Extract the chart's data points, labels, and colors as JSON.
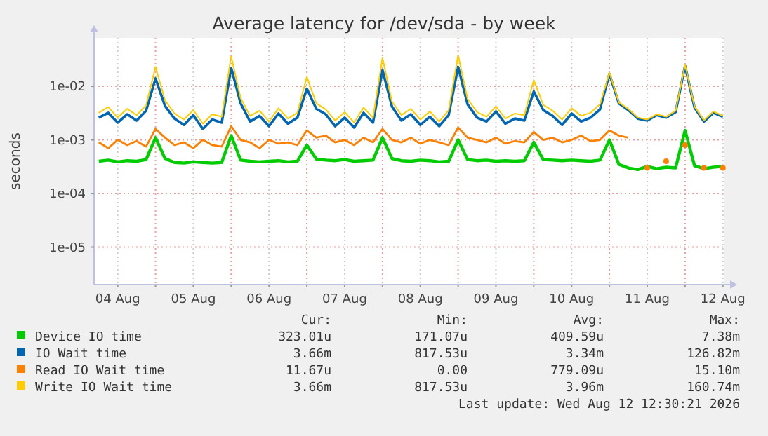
{
  "chart_data": {
    "type": "line",
    "title": "Average latency for /dev/sda - by week",
    "ylabel": "seconds",
    "log": true,
    "grid": true,
    "legend": "bottom",
    "marker": "none",
    "line_style": "solid",
    "xlim": [
      "2026-08-04T04:30",
      "2026-08-12T12:30"
    ],
    "xticks": [
      {
        "value": "2026-08-04T12:00",
        "label": "04 Aug"
      },
      {
        "value": "2026-08-05T00:00",
        "label": null
      },
      {
        "value": "2026-08-05T12:00",
        "label": "05 Aug"
      },
      {
        "value": "2026-08-06T00:00",
        "label": null
      },
      {
        "value": "2026-08-06T12:00",
        "label": "06 Aug"
      },
      {
        "value": "2026-08-07T00:00",
        "label": null
      },
      {
        "value": "2026-08-07T12:00",
        "label": "07 Aug"
      },
      {
        "value": "2026-08-08T00:00",
        "label": null
      },
      {
        "value": "2026-08-08T12:00",
        "label": "08 Aug"
      },
      {
        "value": "2026-08-09T00:00",
        "label": null
      },
      {
        "value": "2026-08-09T12:00",
        "label": "09 Aug"
      },
      {
        "value": "2026-08-10T00:00",
        "label": null
      },
      {
        "value": "2026-08-10T12:00",
        "label": "10 Aug"
      },
      {
        "value": "2026-08-11T00:00",
        "label": null
      },
      {
        "value": "2026-08-11T12:00",
        "label": "11 Aug"
      },
      {
        "value": "2026-08-12T00:00",
        "label": null
      },
      {
        "value": "2026-08-12T12:00",
        "label": "12 Aug"
      }
    ],
    "ylim": [
      2e-06,
      0.08
    ],
    "yticks": [
      {
        "value": 1e-05,
        "label": "1e-05"
      },
      {
        "value": 0.0001,
        "label": "1e-04"
      },
      {
        "value": 0.001,
        "label": "1e-03"
      },
      {
        "value": 0.01,
        "label": "1e-02"
      }
    ],
    "x": [
      "2026-08-04T06:00",
      "2026-08-04T09:00",
      "2026-08-04T12:00",
      "2026-08-04T15:00",
      "2026-08-04T18:00",
      "2026-08-04T21:00",
      "2026-08-05T00:00",
      "2026-08-05T03:00",
      "2026-08-05T06:00",
      "2026-08-05T09:00",
      "2026-08-05T12:00",
      "2026-08-05T15:00",
      "2026-08-05T18:00",
      "2026-08-05T21:00",
      "2026-08-06T00:00",
      "2026-08-06T03:00",
      "2026-08-06T06:00",
      "2026-08-06T09:00",
      "2026-08-06T12:00",
      "2026-08-06T15:00",
      "2026-08-06T18:00",
      "2026-08-06T21:00",
      "2026-08-07T00:00",
      "2026-08-07T03:00",
      "2026-08-07T06:00",
      "2026-08-07T09:00",
      "2026-08-07T12:00",
      "2026-08-07T15:00",
      "2026-08-07T18:00",
      "2026-08-07T21:00",
      "2026-08-08T00:00",
      "2026-08-08T03:00",
      "2026-08-08T06:00",
      "2026-08-08T09:00",
      "2026-08-08T12:00",
      "2026-08-08T15:00",
      "2026-08-08T18:00",
      "2026-08-08T21:00",
      "2026-08-09T00:00",
      "2026-08-09T03:00",
      "2026-08-09T06:00",
      "2026-08-09T09:00",
      "2026-08-09T12:00",
      "2026-08-09T15:00",
      "2026-08-09T18:00",
      "2026-08-09T21:00",
      "2026-08-10T00:00",
      "2026-08-10T03:00",
      "2026-08-10T06:00",
      "2026-08-10T09:00",
      "2026-08-10T12:00",
      "2026-08-10T15:00",
      "2026-08-10T18:00",
      "2026-08-10T21:00",
      "2026-08-11T00:00",
      "2026-08-11T03:00",
      "2026-08-11T06:00",
      "2026-08-11T09:00",
      "2026-08-11T12:00",
      "2026-08-11T15:00",
      "2026-08-11T18:00",
      "2026-08-11T21:00",
      "2026-08-12T00:00",
      "2026-08-12T03:00",
      "2026-08-12T06:00",
      "2026-08-12T09:00",
      "2026-08-12T12:00"
    ],
    "series": [
      {
        "name": "Device IO time",
        "color": "#00cc00",
        "values": [
          0.0004,
          0.00042,
          0.00039,
          0.00041,
          0.0004,
          0.00043,
          0.0011,
          0.00045,
          0.00038,
          0.00037,
          0.00039,
          0.00038,
          0.00037,
          0.00038,
          0.0012,
          0.00042,
          0.0004,
          0.00039,
          0.0004,
          0.00041,
          0.00039,
          0.0004,
          0.0008,
          0.00044,
          0.00042,
          0.00041,
          0.00043,
          0.0004,
          0.00041,
          0.00042,
          0.0011,
          0.00045,
          0.00041,
          0.0004,
          0.00042,
          0.00041,
          0.00039,
          0.0004,
          0.001,
          0.00043,
          0.00041,
          0.00042,
          0.0004,
          0.00041,
          0.0004,
          0.00041,
          0.0009,
          0.00043,
          0.00042,
          0.00041,
          0.00042,
          0.00041,
          0.0004,
          0.00042,
          0.001,
          0.00035,
          0.0003,
          0.00028,
          0.00032,
          0.00029,
          0.00031,
          0.0003,
          0.0015,
          0.00033,
          0.00029,
          0.00031,
          0.00032
        ]
      },
      {
        "name": "IO Wait time",
        "color": "#0066b3",
        "values": [
          0.0026,
          0.0032,
          0.0021,
          0.003,
          0.0023,
          0.0035,
          0.014,
          0.0043,
          0.0025,
          0.0019,
          0.0029,
          0.0016,
          0.0024,
          0.0021,
          0.022,
          0.0048,
          0.0022,
          0.0028,
          0.0018,
          0.0031,
          0.002,
          0.0026,
          0.009,
          0.0038,
          0.003,
          0.0018,
          0.0026,
          0.0017,
          0.0032,
          0.0021,
          0.02,
          0.0042,
          0.0023,
          0.003,
          0.0019,
          0.0027,
          0.0018,
          0.0029,
          0.023,
          0.0046,
          0.0026,
          0.0022,
          0.0034,
          0.002,
          0.0025,
          0.0023,
          0.008,
          0.0036,
          0.0028,
          0.0019,
          0.0031,
          0.0022,
          0.0026,
          0.0037,
          0.017,
          0.0048,
          0.0036,
          0.0025,
          0.0023,
          0.0029,
          0.0026,
          0.0033,
          0.024,
          0.004,
          0.0022,
          0.0032,
          0.0027
        ]
      },
      {
        "name": "Read IO Wait time",
        "color": "#ff8000",
        "values": [
          0.0009,
          0.0007,
          0.001,
          0.0008,
          0.00095,
          0.00075,
          0.0016,
          0.0011,
          0.0008,
          0.0009,
          0.0007,
          0.001,
          0.0008,
          0.00075,
          0.0018,
          0.001,
          0.0009,
          0.0007,
          0.001,
          0.00085,
          0.0009,
          0.0008,
          0.0015,
          0.0011,
          0.0012,
          0.0009,
          0.001,
          0.0008,
          0.0011,
          0.0009,
          0.0016,
          0.001,
          0.0009,
          0.0011,
          0.00085,
          0.001,
          0.0009,
          0.0008,
          0.0017,
          0.0011,
          0.001,
          0.0009,
          0.0011,
          0.00085,
          0.00095,
          0.0009,
          0.0014,
          0.001,
          0.0011,
          0.0009,
          0.001,
          0.0012,
          0.00095,
          0.001,
          0.0015,
          0.0012,
          0.0011,
          null,
          0.0003,
          null,
          0.0004,
          null,
          0.0008,
          null,
          0.0003,
          null,
          0.0003
        ]
      },
      {
        "name": "Write IO Wait time",
        "color": "#ffcc00",
        "values": [
          0.0032,
          0.0041,
          0.0026,
          0.0038,
          0.0029,
          0.0044,
          0.023,
          0.0055,
          0.0031,
          0.0024,
          0.0036,
          0.002,
          0.003,
          0.0027,
          0.036,
          0.006,
          0.0028,
          0.0035,
          0.0022,
          0.0039,
          0.0025,
          0.0032,
          0.015,
          0.0048,
          0.0037,
          0.0023,
          0.0033,
          0.0021,
          0.004,
          0.0026,
          0.034,
          0.0052,
          0.0029,
          0.0038,
          0.0024,
          0.0034,
          0.0022,
          0.0036,
          0.038,
          0.0058,
          0.0033,
          0.0027,
          0.0042,
          0.0025,
          0.0031,
          0.0029,
          0.013,
          0.0045,
          0.0035,
          0.0024,
          0.0039,
          0.0028,
          0.0032,
          0.0046,
          0.018,
          0.005,
          0.0038,
          0.0026,
          0.0024,
          0.003,
          0.0027,
          0.0035,
          0.025,
          0.0042,
          0.0023,
          0.0034,
          0.0028
        ]
      }
    ],
    "annotations": [
      "Cur:",
      "Min:",
      "Avg:",
      "Max:",
      "323.01u",
      "171.07u",
      "409.59u",
      "7.38m",
      "3.66m",
      "817.53u",
      "3.34m",
      "126.82m",
      "11.67u",
      "0.00",
      "779.09u",
      "15.10m",
      "3.66m",
      "817.53u",
      "3.96m",
      "160.74m",
      "Last update: Wed Aug 12 12:30:21 2026"
    ]
  }
}
